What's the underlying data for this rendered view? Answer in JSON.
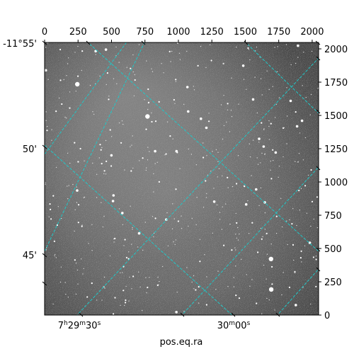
{
  "chart_data": {
    "type": "scatter",
    "title": "",
    "xlabel": "pos.eq.ra",
    "ylabel": "",
    "pixel_axes": {
      "x_ticks": [
        "0",
        "250",
        "500",
        "750",
        "1000",
        "1250",
        "1500",
        "1750",
        "2000"
      ],
      "x_values": [
        0,
        250,
        500,
        750,
        1000,
        1250,
        1500,
        1750,
        2000
      ],
      "xlim": [
        0,
        2048
      ],
      "y_ticks": [
        "0",
        "250",
        "500",
        "750",
        "1000",
        "1250",
        "1500",
        "1750",
        "2000"
      ],
      "y_values": [
        0,
        250,
        500,
        750,
        1000,
        1250,
        1500,
        1750,
        2000
      ],
      "ylim": [
        0,
        2048
      ]
    },
    "world_axes": {
      "ra_ticks": [
        "7h29m30s",
        "30m00s"
      ],
      "dec_ticks": [
        "-11°55'",
        "50'",
        "45'"
      ]
    },
    "grid": true,
    "grid_color": "#20c8c8",
    "image_colormap": "gray"
  }
}
